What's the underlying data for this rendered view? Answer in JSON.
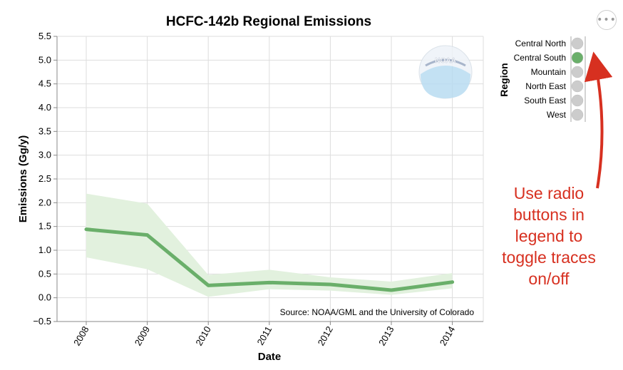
{
  "chart_data": {
    "type": "line",
    "title": "HCFC-142b Regional Emissions",
    "xlabel": "Date",
    "ylabel": "Emissions (Gg/y)",
    "x": [
      "2008",
      "2009",
      "2010",
      "2011",
      "2012",
      "2013",
      "2014"
    ],
    "ylim": [
      -0.5,
      5.5
    ],
    "yticks": [
      "−0.5",
      "0.0",
      "0.5",
      "1.0",
      "1.5",
      "2.0",
      "2.5",
      "3.0",
      "3.5",
      "4.0",
      "4.5",
      "5.0",
      "5.5"
    ],
    "ytick_values": [
      -0.5,
      0.0,
      0.5,
      1.0,
      1.5,
      2.0,
      2.5,
      3.0,
      3.5,
      4.0,
      4.5,
      5.0,
      5.5
    ],
    "grid": true,
    "series": [
      {
        "name": "Central South",
        "color": "#6aaf6a",
        "band_color": "#e2f1de",
        "values": [
          1.44,
          1.32,
          0.26,
          0.32,
          0.28,
          0.16,
          0.33
        ],
        "upper": [
          2.19,
          1.98,
          0.48,
          0.59,
          0.43,
          0.34,
          0.52
        ],
        "lower": [
          0.85,
          0.6,
          0.02,
          0.18,
          0.15,
          0.06,
          0.2
        ]
      }
    ],
    "legend": {
      "title": "Region",
      "position": "top-right",
      "items": [
        {
          "label": "Central North",
          "active": false
        },
        {
          "label": "Central South",
          "active": true
        },
        {
          "label": "Mountain",
          "active": false
        },
        {
          "label": "North East",
          "active": false
        },
        {
          "label": "South East",
          "active": false
        },
        {
          "label": "West",
          "active": false
        }
      ],
      "active_color": "#6aaf6a",
      "inactive_color": "#cccccc"
    },
    "source_note": "Source: NOAA/GML and the University of Colorado",
    "annotation": [
      "Use radio",
      "buttons in",
      "legend to",
      "toggle traces",
      "on/off"
    ],
    "annotation_color": "#d73020",
    "logo_text": "NOAA"
  },
  "menu_icon": "ellipsis-icon"
}
